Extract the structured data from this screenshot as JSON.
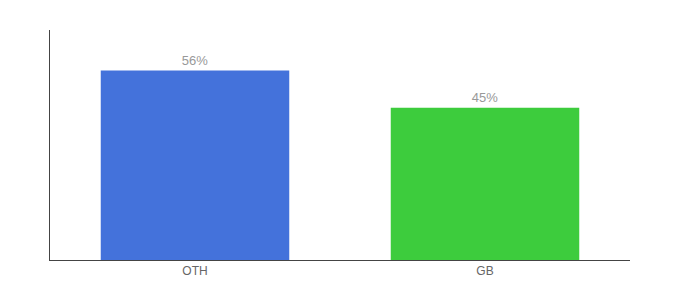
{
  "chart_data": {
    "type": "bar",
    "categories": [
      "OTH",
      "GB"
    ],
    "values": [
      56,
      45
    ],
    "value_labels": [
      "56%",
      "45%"
    ],
    "colors": [
      "#4472db",
      "#3dcc3d"
    ],
    "ylim": [
      0,
      68
    ],
    "yticks": [],
    "data_labels": true,
    "tick_labels": "x",
    "grid": false
  }
}
